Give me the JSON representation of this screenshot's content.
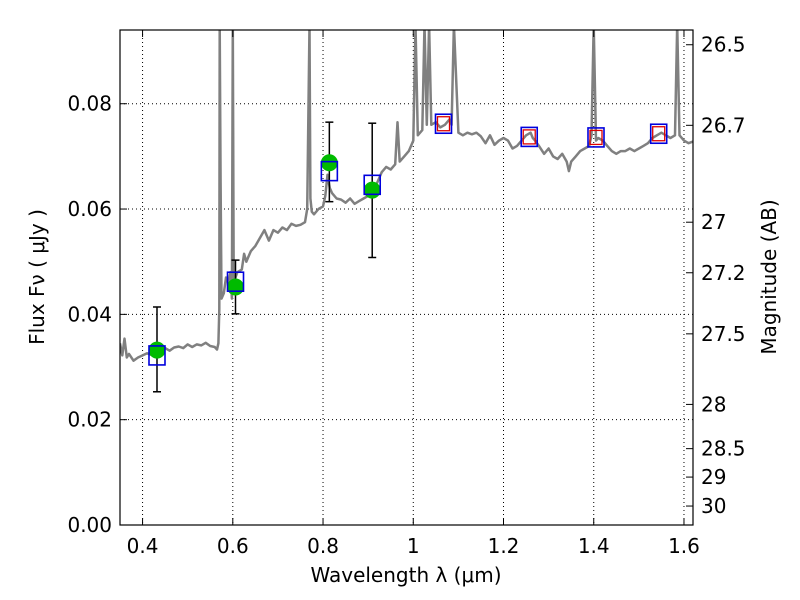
{
  "chart_data": {
    "type": "scatter",
    "title": "",
    "xlabel": "Wavelength  λ (μm)",
    "ylabel": "Flux  Fν  ( μJy )",
    "y2label": "Magnitude (AB)",
    "xlim": [
      0.35,
      1.62
    ],
    "ylim": [
      0.0,
      0.094
    ],
    "grid": true,
    "xticks": [
      0.4,
      0.6,
      0.8,
      1.0,
      1.2,
      1.4,
      1.6
    ],
    "xtick_labels": [
      "0.4",
      "0.6",
      "0.8",
      "1",
      "1.2",
      "1.4",
      "1.6"
    ],
    "yticks": [
      0.0,
      0.02,
      0.04,
      0.06,
      0.08
    ],
    "ytick_labels": [
      "0.00",
      "0.02",
      "0.04",
      "0.06",
      "0.08"
    ],
    "y2_ticks": [
      {
        "label": "26.5",
        "flux": 0.0912
      },
      {
        "label": "26.7",
        "flux": 0.0759
      },
      {
        "label": "27",
        "flux": 0.0575
      },
      {
        "label": "27.2",
        "flux": 0.0479
      },
      {
        "label": "27.5",
        "flux": 0.0363
      },
      {
        "label": "28",
        "flux": 0.0229
      },
      {
        "label": "28.5",
        "flux": 0.0145
      },
      {
        "label": "29",
        "flux": 0.0091
      },
      {
        "label": "30",
        "flux": 0.0036
      }
    ],
    "colors": {
      "model": "#808080",
      "observed": "#00bb00",
      "errorbar": "#000000",
      "synthetic_box": "#0000dd",
      "synthetic_inner": "#dd0000"
    },
    "series": [
      {
        "kind": "line",
        "points": [
          [
            0.35,
            0.0345
          ],
          [
            0.355,
            0.0322
          ],
          [
            0.36,
            0.0354
          ],
          [
            0.365,
            0.0318
          ],
          [
            0.37,
            0.0325
          ],
          [
            0.38,
            0.0312
          ],
          [
            0.39,
            0.0318
          ],
          [
            0.4,
            0.0322
          ],
          [
            0.41,
            0.0326
          ],
          [
            0.42,
            0.0323
          ],
          [
            0.43,
            0.0333
          ],
          [
            0.44,
            0.0329
          ],
          [
            0.45,
            0.0336
          ],
          [
            0.46,
            0.0331
          ],
          [
            0.47,
            0.0337
          ],
          [
            0.48,
            0.0339
          ],
          [
            0.49,
            0.0336
          ],
          [
            0.5,
            0.0343
          ],
          [
            0.51,
            0.0338
          ],
          [
            0.52,
            0.0343
          ],
          [
            0.53,
            0.0341
          ],
          [
            0.54,
            0.0346
          ],
          [
            0.55,
            0.034
          ],
          [
            0.56,
            0.0338
          ],
          [
            0.565,
            0.0333
          ],
          [
            0.568,
            0.0345
          ],
          [
            0.57,
            0.041
          ],
          [
            0.571,
            0.095
          ],
          [
            0.573,
            0.065
          ],
          [
            0.575,
            0.043
          ],
          [
            0.58,
            0.044
          ],
          [
            0.585,
            0.047
          ],
          [
            0.59,
            0.046
          ],
          [
            0.595,
            0.048
          ],
          [
            0.598,
            0.043
          ],
          [
            0.6,
            0.095
          ],
          [
            0.602,
            0.046
          ],
          [
            0.606,
            0.047
          ],
          [
            0.61,
            0.048
          ],
          [
            0.62,
            0.0485
          ],
          [
            0.625,
            0.0515
          ],
          [
            0.63,
            0.05
          ],
          [
            0.64,
            0.052
          ],
          [
            0.65,
            0.053
          ],
          [
            0.66,
            0.0545
          ],
          [
            0.67,
            0.056
          ],
          [
            0.68,
            0.054
          ],
          [
            0.69,
            0.056
          ],
          [
            0.7,
            0.0555
          ],
          [
            0.71,
            0.0565
          ],
          [
            0.72,
            0.056
          ],
          [
            0.73,
            0.0572
          ],
          [
            0.74,
            0.0568
          ],
          [
            0.75,
            0.057
          ],
          [
            0.76,
            0.0575
          ],
          [
            0.765,
            0.06
          ],
          [
            0.77,
            0.095
          ],
          [
            0.772,
            0.062
          ],
          [
            0.775,
            0.0595
          ],
          [
            0.78,
            0.059
          ],
          [
            0.79,
            0.06
          ],
          [
            0.8,
            0.0605
          ],
          [
            0.805,
            0.0625
          ],
          [
            0.81,
            0.0665
          ],
          [
            0.815,
            0.064
          ],
          [
            0.82,
            0.063
          ],
          [
            0.83,
            0.062
          ],
          [
            0.84,
            0.0618
          ],
          [
            0.85,
            0.0612
          ],
          [
            0.86,
            0.062
          ],
          [
            0.87,
            0.061
          ],
          [
            0.88,
            0.0615
          ],
          [
            0.89,
            0.062
          ],
          [
            0.9,
            0.0625
          ],
          [
            0.91,
            0.064
          ],
          [
            0.92,
            0.065
          ],
          [
            0.93,
            0.067
          ],
          [
            0.94,
            0.068
          ],
          [
            0.95,
            0.0675
          ],
          [
            0.96,
            0.0685
          ],
          [
            0.965,
            0.0765
          ],
          [
            0.97,
            0.069
          ],
          [
            0.98,
            0.07
          ],
          [
            0.99,
            0.071
          ],
          [
            1.0,
            0.073
          ],
          [
            1.005,
            0.095
          ],
          [
            1.01,
            0.074
          ],
          [
            1.02,
            0.075
          ],
          [
            1.025,
            0.095
          ],
          [
            1.03,
            0.076
          ],
          [
            1.035,
            0.095
          ],
          [
            1.04,
            0.076
          ],
          [
            1.05,
            0.0765
          ],
          [
            1.06,
            0.0755
          ],
          [
            1.07,
            0.076
          ],
          [
            1.08,
            0.077
          ],
          [
            1.085,
            0.076
          ],
          [
            1.09,
            0.095
          ],
          [
            1.1,
            0.0745
          ],
          [
            1.11,
            0.074
          ],
          [
            1.12,
            0.0745
          ],
          [
            1.13,
            0.0742
          ],
          [
            1.14,
            0.0745
          ],
          [
            1.15,
            0.0738
          ],
          [
            1.16,
            0.0725
          ],
          [
            1.17,
            0.074
          ],
          [
            1.18,
            0.0722
          ],
          [
            1.19,
            0.073
          ],
          [
            1.2,
            0.0735
          ],
          [
            1.21,
            0.073
          ],
          [
            1.22,
            0.0715
          ],
          [
            1.23,
            0.072
          ],
          [
            1.24,
            0.073
          ],
          [
            1.25,
            0.074
          ],
          [
            1.26,
            0.0745
          ],
          [
            1.265,
            0.0735
          ],
          [
            1.27,
            0.073
          ],
          [
            1.28,
            0.0718
          ],
          [
            1.29,
            0.0705
          ],
          [
            1.3,
            0.0715
          ],
          [
            1.31,
            0.07
          ],
          [
            1.32,
            0.0695
          ],
          [
            1.33,
            0.0705
          ],
          [
            1.34,
            0.069
          ],
          [
            1.345,
            0.0672
          ],
          [
            1.35,
            0.069
          ],
          [
            1.36,
            0.07
          ],
          [
            1.37,
            0.071
          ],
          [
            1.38,
            0.0715
          ],
          [
            1.39,
            0.072
          ],
          [
            1.395,
            0.074
          ],
          [
            1.4,
            0.095
          ],
          [
            1.405,
            0.073
          ],
          [
            1.41,
            0.0735
          ],
          [
            1.42,
            0.073
          ],
          [
            1.43,
            0.072
          ],
          [
            1.44,
            0.071
          ],
          [
            1.45,
            0.0705
          ],
          [
            1.46,
            0.071
          ],
          [
            1.47,
            0.071
          ],
          [
            1.48,
            0.0715
          ],
          [
            1.49,
            0.071
          ],
          [
            1.5,
            0.0715
          ],
          [
            1.51,
            0.072
          ],
          [
            1.52,
            0.0725
          ],
          [
            1.53,
            0.0735
          ],
          [
            1.54,
            0.074
          ],
          [
            1.55,
            0.0745
          ],
          [
            1.56,
            0.074
          ],
          [
            1.57,
            0.0735
          ],
          [
            1.58,
            0.074
          ],
          [
            1.585,
            0.095
          ],
          [
            1.59,
            0.074
          ],
          [
            1.6,
            0.073
          ],
          [
            1.61,
            0.0725
          ],
          [
            1.62,
            0.0728
          ]
        ]
      },
      {
        "kind": "observed",
        "points": [
          {
            "x": 0.432,
            "y": 0.0332,
            "yerr_low": 0.0253,
            "yerr_high": 0.0414
          },
          {
            "x": 0.606,
            "y": 0.0452,
            "yerr_low": 0.0401,
            "yerr_high": 0.0503
          },
          {
            "x": 0.814,
            "y": 0.0688,
            "yerr_low": 0.0614,
            "yerr_high": 0.0765
          },
          {
            "x": 0.909,
            "y": 0.0636,
            "yerr_low": 0.0508,
            "yerr_high": 0.0763
          }
        ]
      },
      {
        "kind": "synthetic",
        "points": [
          {
            "x": 0.432,
            "y": 0.0322
          },
          {
            "x": 0.606,
            "y": 0.0462
          },
          {
            "x": 0.814,
            "y": 0.0672
          },
          {
            "x": 0.909,
            "y": 0.0646
          },
          {
            "x": 1.067,
            "y": 0.0762
          },
          {
            "x": 1.257,
            "y": 0.0737
          },
          {
            "x": 1.405,
            "y": 0.0736
          },
          {
            "x": 1.544,
            "y": 0.0743
          }
        ],
        "inner_points": [
          {
            "x": 1.067,
            "y": 0.0762
          },
          {
            "x": 1.257,
            "y": 0.0737
          },
          {
            "x": 1.405,
            "y": 0.0736
          },
          {
            "x": 1.544,
            "y": 0.0743
          }
        ]
      }
    ]
  }
}
